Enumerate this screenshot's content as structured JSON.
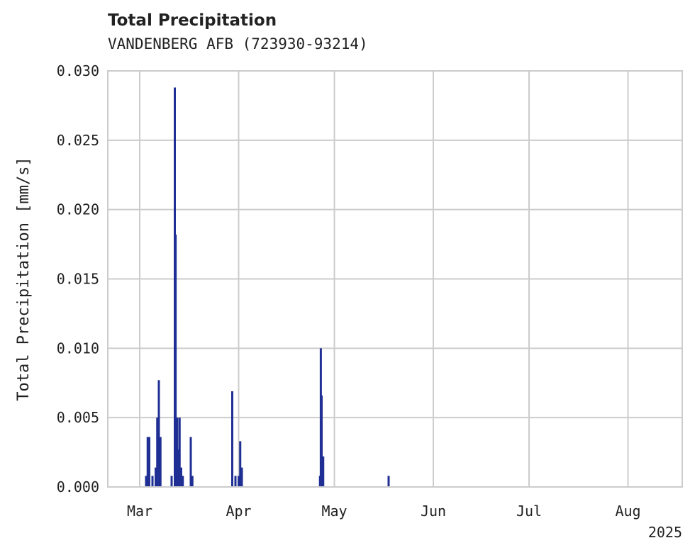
{
  "chart_data": {
    "type": "bar",
    "title": "Total Precipitation",
    "subtitle": "VANDENBERG AFB (723930-93214)",
    "ylabel": "Total Precipitation [mm/s]",
    "xlabel": "",
    "year_label": "2025",
    "ylim": [
      0,
      0.03
    ],
    "xlim": [
      "2025-02-19",
      "2025-08-18"
    ],
    "yticks": [
      "0.000",
      "0.005",
      "0.010",
      "0.015",
      "0.020",
      "0.025",
      "0.030"
    ],
    "xticks": [
      {
        "date": "2025-03-01",
        "label": "Mar"
      },
      {
        "date": "2025-04-01",
        "label": "Apr"
      },
      {
        "date": "2025-05-01",
        "label": "May"
      },
      {
        "date": "2025-06-01",
        "label": "Jun"
      },
      {
        "date": "2025-07-01",
        "label": "Jul"
      },
      {
        "date": "2025-08-01",
        "label": "Aug"
      }
    ],
    "grid": true,
    "color": "#1f2f94",
    "series": [
      {
        "values": [
          {
            "x": "2025-03-03",
            "y": 0.0008
          },
          {
            "x": "2025-03-03 12:00",
            "y": 0.0036
          },
          {
            "x": "2025-03-04",
            "y": 0.0036
          },
          {
            "x": "2025-03-05",
            "y": 0.0008
          },
          {
            "x": "2025-03-06",
            "y": 0.0014
          },
          {
            "x": "2025-03-06 12:00",
            "y": 0.005
          },
          {
            "x": "2025-03-07",
            "y": 0.0077
          },
          {
            "x": "2025-03-07 12:00",
            "y": 0.0036
          },
          {
            "x": "2025-03-11",
            "y": 0.0008
          },
          {
            "x": "2025-03-12",
            "y": 0.0288
          },
          {
            "x": "2025-03-12 06:00",
            "y": 0.0182
          },
          {
            "x": "2025-03-12 18:00",
            "y": 0.005
          },
          {
            "x": "2025-03-13",
            "y": 0.0027
          },
          {
            "x": "2025-03-13 12:00",
            "y": 0.005
          },
          {
            "x": "2025-03-14",
            "y": 0.0014
          },
          {
            "x": "2025-03-14 12:00",
            "y": 0.0008
          },
          {
            "x": "2025-03-17",
            "y": 0.0036
          },
          {
            "x": "2025-03-17 12:00",
            "y": 0.0008
          },
          {
            "x": "2025-03-30",
            "y": 0.0069
          },
          {
            "x": "2025-03-31",
            "y": 0.0008
          },
          {
            "x": "2025-04-01",
            "y": 0.0008
          },
          {
            "x": "2025-04-01 12:00",
            "y": 0.0033
          },
          {
            "x": "2025-04-02",
            "y": 0.0014
          },
          {
            "x": "2025-04-26 12:00",
            "y": 0.0008
          },
          {
            "x": "2025-04-26 18:00",
            "y": 0.01
          },
          {
            "x": "2025-04-27",
            "y": 0.0066
          },
          {
            "x": "2025-04-27 12:00",
            "y": 0.0022
          },
          {
            "x": "2025-05-18",
            "y": 0.0008
          }
        ]
      }
    ]
  }
}
